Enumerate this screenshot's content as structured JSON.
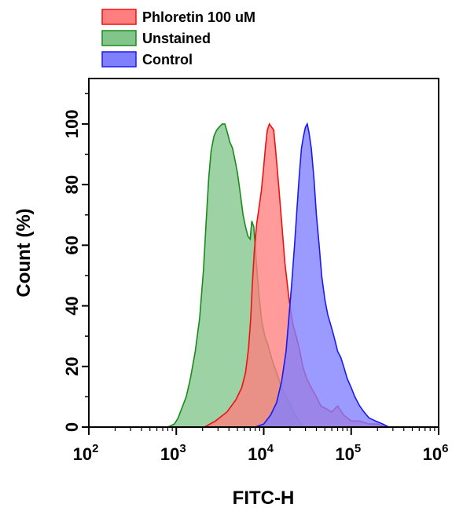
{
  "chart_data": {
    "type": "area",
    "title": "",
    "xlabel": "FITC-H",
    "ylabel": "Count  (%)",
    "xscale": "log",
    "xlim": [
      100,
      1000000
    ],
    "ylim": [
      0,
      115
    ],
    "x_ticks": [
      {
        "base": "10",
        "exp": "2",
        "value": 100
      },
      {
        "base": "10",
        "exp": "3",
        "value": 1000
      },
      {
        "base": "10",
        "exp": "4",
        "value": 10000
      },
      {
        "base": "10",
        "exp": "5",
        "value": 100000
      },
      {
        "base": "10",
        "exp": "6",
        "value": 1000000
      }
    ],
    "y_ticks": [
      "0",
      "20",
      "40",
      "60",
      "80",
      "100"
    ],
    "grid": false,
    "legend_position": "top-left",
    "series": [
      {
        "name": "Phloretin 100 uM",
        "fill": "#ff7f7f",
        "stroke": "#ee1111",
        "x": [
          2100,
          2800,
          3800,
          4800,
          5600,
          6200,
          6700,
          7100,
          7400,
          7800,
          8300,
          8800,
          9400,
          10000,
          10500,
          11000,
          11600,
          12300,
          13000,
          13800,
          14800,
          16000,
          17500,
          19500,
          21500,
          23500,
          25500,
          28000,
          31000,
          35000,
          40000,
          45000,
          52000,
          60000,
          70000,
          82000,
          100000,
          125000,
          160000,
          200000,
          250000
        ],
        "y": [
          0,
          2,
          5,
          9,
          13,
          18,
          26,
          36,
          47,
          58,
          67,
          72,
          78,
          86,
          93,
          98,
          100,
          99,
          98,
          90,
          80,
          68,
          54,
          42,
          34,
          30,
          26,
          20,
          16,
          13,
          10,
          7,
          6,
          5,
          7,
          4,
          2,
          2,
          1,
          1,
          0
        ]
      },
      {
        "name": "Unstained",
        "fill": "#82c58a",
        "stroke": "#1a8a1a",
        "x": [
          800,
          950,
          1050,
          1150,
          1300,
          1450,
          1650,
          1850,
          2050,
          2200,
          2350,
          2500,
          2700,
          2900,
          3100,
          3350,
          3600,
          3850,
          4100,
          4400,
          4700,
          5000,
          5400,
          5800,
          6200,
          6600,
          7000,
          7300,
          7700,
          8200,
          8800,
          9500,
          10300,
          11200,
          12500,
          14000,
          16000,
          19000,
          23000,
          28000
        ],
        "y": [
          0,
          1,
          3,
          6,
          10,
          16,
          25,
          36,
          52,
          68,
          82,
          91,
          96,
          98,
          99,
          100,
          100,
          97,
          94,
          92,
          88,
          84,
          77,
          70,
          66,
          63,
          62,
          68,
          66,
          55,
          44,
          35,
          30,
          27,
          22,
          18,
          13,
          9,
          4,
          0
        ]
      },
      {
        "name": "Control",
        "fill": "#7f7fff",
        "stroke": "#1a1aee",
        "x": [
          8000,
          10000,
          12000,
          14000,
          16000,
          18000,
          19500,
          21000,
          22500,
          24000,
          25500,
          27000,
          28500,
          30000,
          31500,
          33000,
          35000,
          37500,
          40000,
          43000,
          46000,
          50000,
          54000,
          58000,
          62000,
          66000,
          70000,
          76000,
          82000,
          90000,
          100000,
          110000,
          125000,
          140000,
          160000,
          190000,
          230000,
          270000
        ],
        "y": [
          0,
          1,
          4,
          8,
          15,
          25,
          37,
          48,
          60,
          72,
          83,
          92,
          96,
          99,
          100,
          97,
          92,
          82,
          70,
          60,
          50,
          42,
          37,
          34,
          31,
          28,
          25,
          23,
          20,
          16,
          13,
          10,
          7,
          5,
          3,
          2,
          1,
          0
        ]
      }
    ]
  }
}
